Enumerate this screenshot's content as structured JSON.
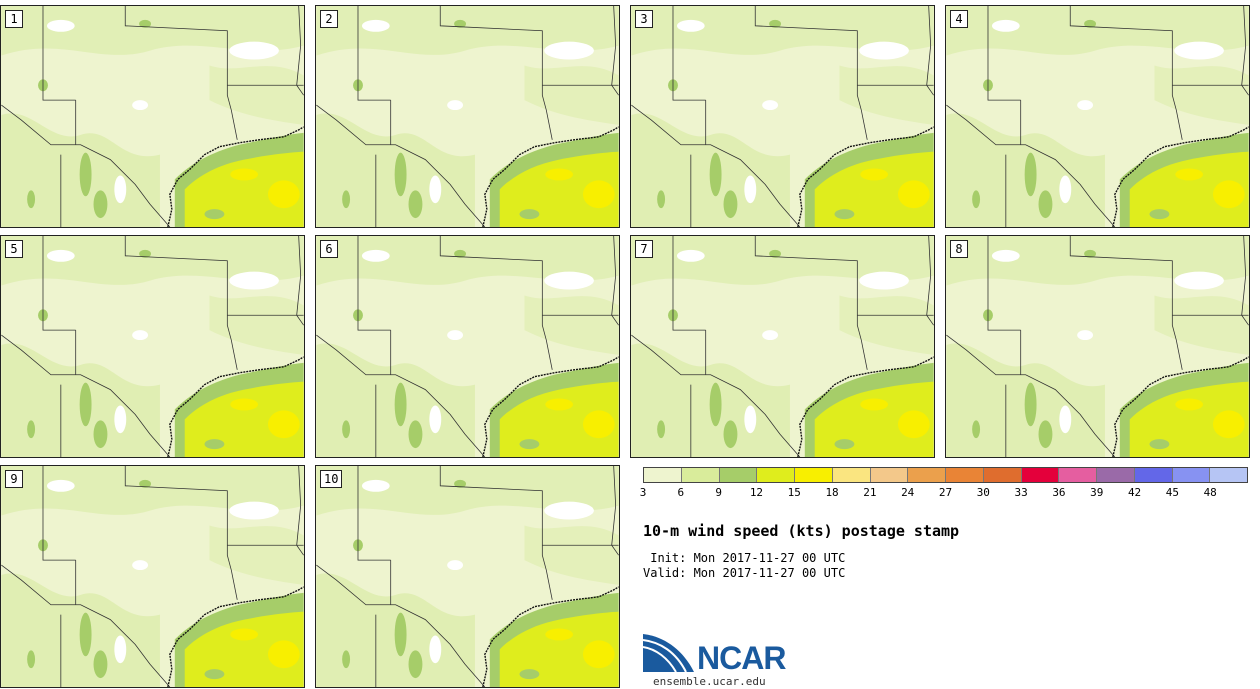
{
  "panels": [
    {
      "label": "1"
    },
    {
      "label": "2"
    },
    {
      "label": "3"
    },
    {
      "label": "4"
    },
    {
      "label": "5"
    },
    {
      "label": "6"
    },
    {
      "label": "7"
    },
    {
      "label": "8"
    },
    {
      "label": "9"
    },
    {
      "label": "10"
    }
  ],
  "colorbar": {
    "ticks": [
      "3",
      "6",
      "9",
      "12",
      "15",
      "18",
      "21",
      "24",
      "27",
      "30",
      "33",
      "36",
      "39",
      "42",
      "45",
      "48"
    ],
    "colors": [
      "#eef4cf",
      "#d9ec9b",
      "#a6cd69",
      "#dfed1d",
      "#f8ef00",
      "#fae580",
      "#f3c88a",
      "#eba04c",
      "#e98436",
      "#df6d2e",
      "#e4003b",
      "#e55ea0",
      "#9a6aa8",
      "#6367e8",
      "#8792f2",
      "#b6c5f4"
    ]
  },
  "title": "10-m wind speed (kts) postage stamp",
  "init": " Init: Mon 2017-11-27 00 UTC",
  "valid": "Valid: Mon 2017-11-27 00 UTC",
  "logo": {
    "name": "NCAR",
    "url": "ensemble.ucar.edu"
  }
}
